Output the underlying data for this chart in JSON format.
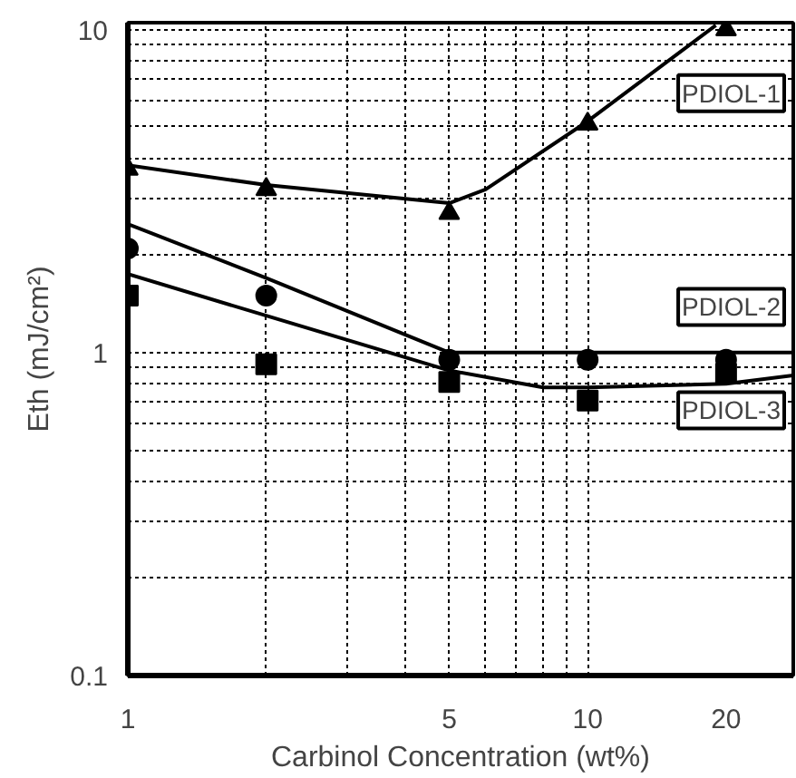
{
  "chart_data": {
    "type": "scatter",
    "xlabel": "Carbinol Concentration (wt%)",
    "ylabel": "Eth (mJ/cm²)",
    "log": "xy",
    "grid": true,
    "xlim": [
      1,
      28
    ],
    "ylim": [
      0.1,
      10.5
    ],
    "xticks": [
      1,
      5,
      10,
      20
    ],
    "yticks": [
      0.1,
      1,
      10
    ],
    "series": [
      {
        "marker": "triangle",
        "color": "#000000",
        "x": [
          1,
          2,
          5,
          10,
          20
        ],
        "values": [
          3.7,
          3.2,
          2.7,
          5.1,
          10
        ]
      },
      {
        "marker": "circle",
        "color": "#000000",
        "x": [
          1,
          2,
          5,
          10,
          20
        ],
        "values": [
          2.1,
          1.5,
          0.95,
          0.95,
          0.95
        ]
      },
      {
        "marker": "square",
        "color": "#000000",
        "x": [
          1,
          2,
          5,
          10,
          20
        ],
        "values": [
          1.5,
          0.92,
          0.81,
          0.71,
          0.86
        ]
      },
      {
        "type": "line",
        "color": "#000000",
        "x": [
          1,
          2,
          5,
          6,
          10,
          19
        ],
        "values": [
          3.8,
          3.3,
          2.9,
          3.2,
          5.2,
          10.3
        ]
      },
      {
        "type": "line",
        "color": "#000000",
        "x": [
          1,
          2,
          5,
          28
        ],
        "values": [
          2.5,
          1.7,
          1.0,
          1.0
        ]
      },
      {
        "type": "line",
        "color": "#000000",
        "x": [
          1,
          2,
          5,
          8,
          10,
          20,
          28
        ],
        "values": [
          1.75,
          1.3,
          0.88,
          0.78,
          0.78,
          0.8,
          0.85
        ]
      }
    ],
    "annotations": [
      "PDIOL-1",
      "PDIOL-2",
      "PDIOL-3"
    ]
  }
}
